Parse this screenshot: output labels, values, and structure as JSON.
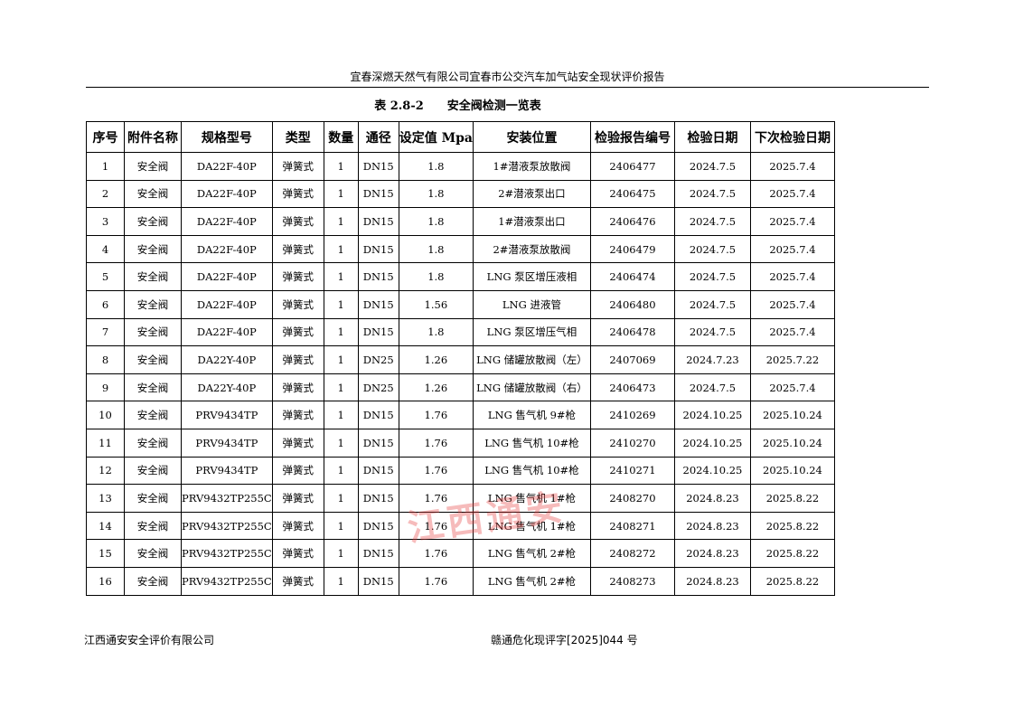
{
  "header": {
    "title": "宜春深燃天然气有限公司宜春市公交汽车加气站安全现状评价报告"
  },
  "table": {
    "caption": "表 2.8-2　　安全阀检测一览表",
    "columns": [
      "序号",
      "附件名称",
      "规格型号",
      "类型",
      "数量",
      "通径",
      "设定值 Mpa",
      "安装位置",
      "检验报告编号",
      "检验日期",
      "下次检验日期"
    ],
    "rows": [
      [
        "1",
        "安全阀",
        "DA22F-40P",
        "弹簧式",
        "1",
        "DN15",
        "1.8",
        "1#潜液泵放散阀",
        "2406477",
        "2024.7.5",
        "2025.7.4"
      ],
      [
        "2",
        "安全阀",
        "DA22F-40P",
        "弹簧式",
        "1",
        "DN15",
        "1.8",
        "2#潜液泵出口",
        "2406475",
        "2024.7.5",
        "2025.7.4"
      ],
      [
        "3",
        "安全阀",
        "DA22F-40P",
        "弹簧式",
        "1",
        "DN15",
        "1.8",
        "1#潜液泵出口",
        "2406476",
        "2024.7.5",
        "2025.7.4"
      ],
      [
        "4",
        "安全阀",
        "DA22F-40P",
        "弹簧式",
        "1",
        "DN15",
        "1.8",
        "2#潜液泵放散阀",
        "2406479",
        "2024.7.5",
        "2025.7.4"
      ],
      [
        "5",
        "安全阀",
        "DA22F-40P",
        "弹簧式",
        "1",
        "DN15",
        "1.8",
        "LNG 泵区增压液相",
        "2406474",
        "2024.7.5",
        "2025.7.4"
      ],
      [
        "6",
        "安全阀",
        "DA22F-40P",
        "弹簧式",
        "1",
        "DN15",
        "1.56",
        "LNG 进液管",
        "2406480",
        "2024.7.5",
        "2025.7.4"
      ],
      [
        "7",
        "安全阀",
        "DA22F-40P",
        "弹簧式",
        "1",
        "DN15",
        "1.8",
        "LNG 泵区增压气相",
        "2406478",
        "2024.7.5",
        "2025.7.4"
      ],
      [
        "8",
        "安全阀",
        "DA22Y-40P",
        "弹簧式",
        "1",
        "DN25",
        "1.26",
        "LNG 储罐放散阀（左）",
        "2407069",
        "2024.7.23",
        "2025.7.22"
      ],
      [
        "9",
        "安全阀",
        "DA22Y-40P",
        "弹簧式",
        "1",
        "DN25",
        "1.26",
        "LNG 储罐放散阀（右）",
        "2406473",
        "2024.7.5",
        "2025.7.4"
      ],
      [
        "10",
        "安全阀",
        "PRV9434TP",
        "弹簧式",
        "1",
        "DN15",
        "1.76",
        "LNG 售气机 9#枪",
        "2410269",
        "2024.10.25",
        "2025.10.24"
      ],
      [
        "11",
        "安全阀",
        "PRV9434TP",
        "弹簧式",
        "1",
        "DN15",
        "1.76",
        "LNG 售气机 10#枪",
        "2410270",
        "2024.10.25",
        "2025.10.24"
      ],
      [
        "12",
        "安全阀",
        "PRV9434TP",
        "弹簧式",
        "1",
        "DN15",
        "1.76",
        "LNG 售气机 10#枪",
        "2410271",
        "2024.10.25",
        "2025.10.24"
      ],
      [
        "13",
        "安全阀",
        "PRV9432TP255C",
        "弹簧式",
        "1",
        "DN15",
        "1.76",
        "LNG 售气机 1#枪",
        "2408270",
        "2024.8.23",
        "2025.8.22"
      ],
      [
        "14",
        "安全阀",
        "PRV9432TP255C",
        "弹簧式",
        "1",
        "DN15",
        "1.76",
        "LNG 售气机 1#枪",
        "2408271",
        "2024.8.23",
        "2025.8.22"
      ],
      [
        "15",
        "安全阀",
        "PRV9432TP255C",
        "弹簧式",
        "1",
        "DN15",
        "1.76",
        "LNG 售气机 2#枪",
        "2408272",
        "2024.8.23",
        "2025.8.22"
      ],
      [
        "16",
        "安全阀",
        "PRV9432TP255C",
        "弹簧式",
        "1",
        "DN15",
        "1.76",
        "LNG 售气机 2#枪",
        "2408273",
        "2024.8.23",
        "2025.8.22"
      ]
    ]
  },
  "watermark": "江西通安",
  "footer": {
    "left": "江西通安安全评价有限公司",
    "right": "赣通危化现评字[2025]044 号"
  }
}
